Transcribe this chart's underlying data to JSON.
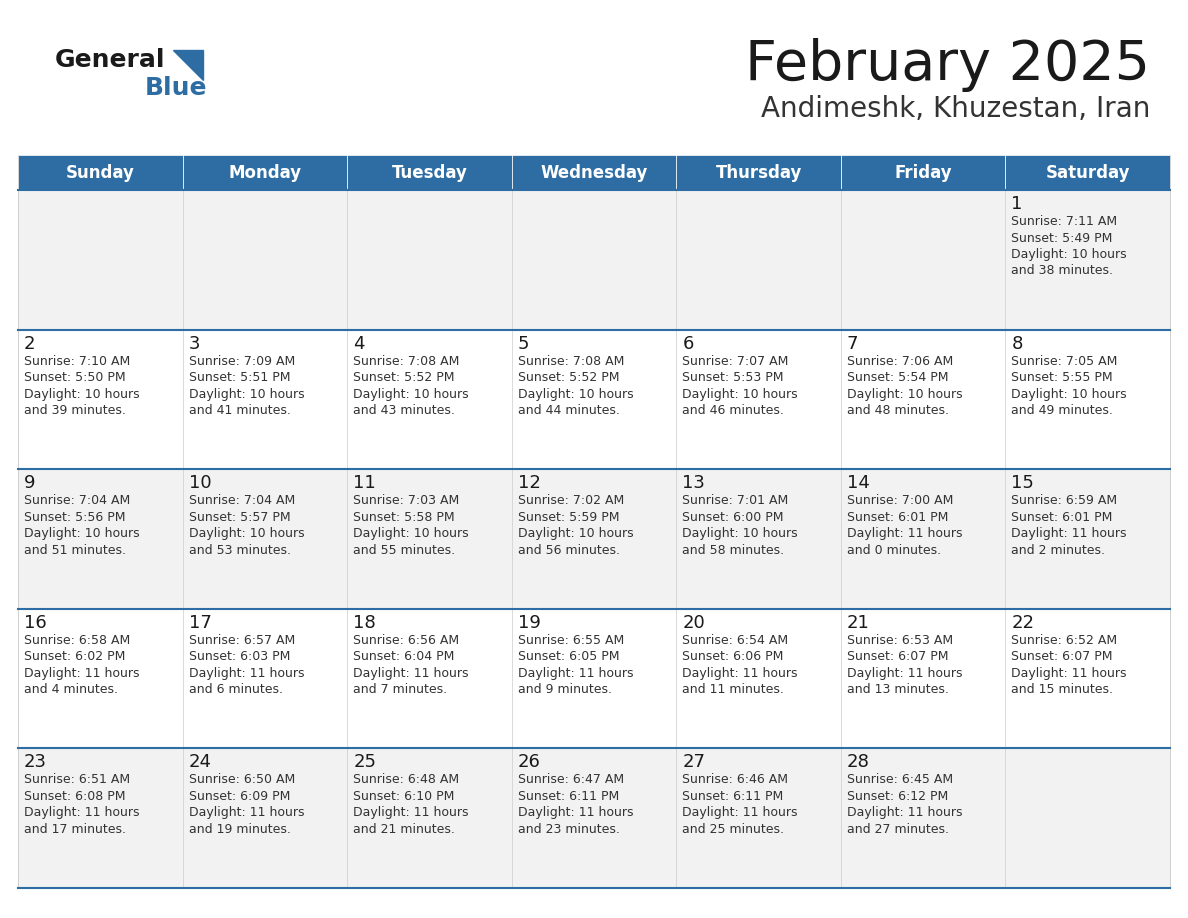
{
  "title": "February 2025",
  "subtitle": "Andimeshk, Khuzestan, Iran",
  "header_color": "#2e6da4",
  "header_text_color": "#ffffff",
  "border_color": "#2e6da4",
  "day_names": [
    "Sunday",
    "Monday",
    "Tuesday",
    "Wednesday",
    "Thursday",
    "Friday",
    "Saturday"
  ],
  "title_color": "#1a1a1a",
  "subtitle_color": "#333333",
  "day_number_color": "#1a1a1a",
  "cell_text_color": "#333333",
  "row_bg_colors": [
    "#f2f2f2",
    "#ffffff",
    "#f2f2f2",
    "#ffffff",
    "#f2f2f2"
  ],
  "logo_general_color": "#1a1a1a",
  "logo_blue_color": "#2e6da4",
  "logo_triangle_color": "#2e6da4",
  "calendar": [
    [
      null,
      null,
      null,
      null,
      null,
      null,
      {
        "day": 1,
        "sunrise": "7:11 AM",
        "sunset": "5:49 PM",
        "daylight": "10 hours\nand 38 minutes."
      }
    ],
    [
      {
        "day": 2,
        "sunrise": "7:10 AM",
        "sunset": "5:50 PM",
        "daylight": "10 hours\nand 39 minutes."
      },
      {
        "day": 3,
        "sunrise": "7:09 AM",
        "sunset": "5:51 PM",
        "daylight": "10 hours\nand 41 minutes."
      },
      {
        "day": 4,
        "sunrise": "7:08 AM",
        "sunset": "5:52 PM",
        "daylight": "10 hours\nand 43 minutes."
      },
      {
        "day": 5,
        "sunrise": "7:08 AM",
        "sunset": "5:52 PM",
        "daylight": "10 hours\nand 44 minutes."
      },
      {
        "day": 6,
        "sunrise": "7:07 AM",
        "sunset": "5:53 PM",
        "daylight": "10 hours\nand 46 minutes."
      },
      {
        "day": 7,
        "sunrise": "7:06 AM",
        "sunset": "5:54 PM",
        "daylight": "10 hours\nand 48 minutes."
      },
      {
        "day": 8,
        "sunrise": "7:05 AM",
        "sunset": "5:55 PM",
        "daylight": "10 hours\nand 49 minutes."
      }
    ],
    [
      {
        "day": 9,
        "sunrise": "7:04 AM",
        "sunset": "5:56 PM",
        "daylight": "10 hours\nand 51 minutes."
      },
      {
        "day": 10,
        "sunrise": "7:04 AM",
        "sunset": "5:57 PM",
        "daylight": "10 hours\nand 53 minutes."
      },
      {
        "day": 11,
        "sunrise": "7:03 AM",
        "sunset": "5:58 PM",
        "daylight": "10 hours\nand 55 minutes."
      },
      {
        "day": 12,
        "sunrise": "7:02 AM",
        "sunset": "5:59 PM",
        "daylight": "10 hours\nand 56 minutes."
      },
      {
        "day": 13,
        "sunrise": "7:01 AM",
        "sunset": "6:00 PM",
        "daylight": "10 hours\nand 58 minutes."
      },
      {
        "day": 14,
        "sunrise": "7:00 AM",
        "sunset": "6:01 PM",
        "daylight": "11 hours\nand 0 minutes."
      },
      {
        "day": 15,
        "sunrise": "6:59 AM",
        "sunset": "6:01 PM",
        "daylight": "11 hours\nand 2 minutes."
      }
    ],
    [
      {
        "day": 16,
        "sunrise": "6:58 AM",
        "sunset": "6:02 PM",
        "daylight": "11 hours\nand 4 minutes."
      },
      {
        "day": 17,
        "sunrise": "6:57 AM",
        "sunset": "6:03 PM",
        "daylight": "11 hours\nand 6 minutes."
      },
      {
        "day": 18,
        "sunrise": "6:56 AM",
        "sunset": "6:04 PM",
        "daylight": "11 hours\nand 7 minutes."
      },
      {
        "day": 19,
        "sunrise": "6:55 AM",
        "sunset": "6:05 PM",
        "daylight": "11 hours\nand 9 minutes."
      },
      {
        "day": 20,
        "sunrise": "6:54 AM",
        "sunset": "6:06 PM",
        "daylight": "11 hours\nand 11 minutes."
      },
      {
        "day": 21,
        "sunrise": "6:53 AM",
        "sunset": "6:07 PM",
        "daylight": "11 hours\nand 13 minutes."
      },
      {
        "day": 22,
        "sunrise": "6:52 AM",
        "sunset": "6:07 PM",
        "daylight": "11 hours\nand 15 minutes."
      }
    ],
    [
      {
        "day": 23,
        "sunrise": "6:51 AM",
        "sunset": "6:08 PM",
        "daylight": "11 hours\nand 17 minutes."
      },
      {
        "day": 24,
        "sunrise": "6:50 AM",
        "sunset": "6:09 PM",
        "daylight": "11 hours\nand 19 minutes."
      },
      {
        "day": 25,
        "sunrise": "6:48 AM",
        "sunset": "6:10 PM",
        "daylight": "11 hours\nand 21 minutes."
      },
      {
        "day": 26,
        "sunrise": "6:47 AM",
        "sunset": "6:11 PM",
        "daylight": "11 hours\nand 23 minutes."
      },
      {
        "day": 27,
        "sunrise": "6:46 AM",
        "sunset": "6:11 PM",
        "daylight": "11 hours\nand 25 minutes."
      },
      {
        "day": 28,
        "sunrise": "6:45 AM",
        "sunset": "6:12 PM",
        "daylight": "11 hours\nand 27 minutes."
      },
      null
    ]
  ]
}
